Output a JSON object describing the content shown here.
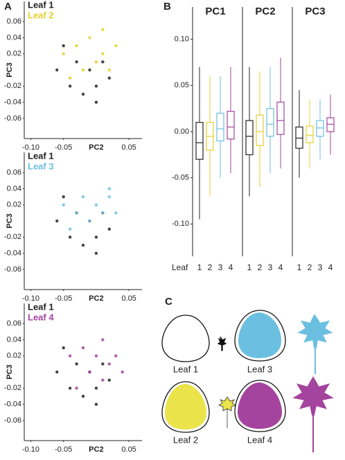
{
  "panel_labels": [
    "A",
    "B",
    "C"
  ],
  "box_axis_label": "Leaf",
  "leaf_diagram": {
    "labels": [
      "Leaf 1",
      "Leaf 3",
      "Leaf 2",
      "Leaf 4"
    ]
  },
  "chart_data": [
    {
      "type": "scatter",
      "xlabel": "PC2",
      "ylabel": "PC3",
      "xlim": [
        -0.11,
        0.07
      ],
      "ylim": [
        -0.085,
        0.085
      ],
      "xticks": [
        {
          "value": -0.1,
          "label": "-0.10"
        },
        -0.05,
        0.05
      ],
      "yticks": [
        0.06,
        0.04,
        0.02,
        -0.02,
        -0.04,
        -0.06
      ],
      "series": [
        {
          "name": "Leaf 1",
          "color": "#222222",
          "x": [
            -0.06,
            -0.04,
            -0.03,
            -0.02,
            -0.01,
            0.0,
            0.01,
            0.02,
            -0.05,
            0.0
          ],
          "values": [
            0.0,
            -0.02,
            0.01,
            -0.03,
            0.0,
            -0.02,
            0.01,
            -0.01,
            0.03,
            -0.04
          ]
        },
        {
          "name": "Leaf 2",
          "color": "#e6cf2e",
          "x": [
            -0.05,
            -0.03,
            -0.02,
            -0.01,
            0.0,
            0.01,
            0.02,
            0.03,
            -0.04,
            0.01
          ],
          "values": [
            0.02,
            0.03,
            0.0,
            0.04,
            0.01,
            0.02,
            0.0,
            0.03,
            -0.01,
            0.05
          ]
        }
      ]
    },
    {
      "type": "scatter",
      "xlabel": "PC2",
      "ylabel": "PC3",
      "xlim": [
        -0.11,
        0.07
      ],
      "ylim": [
        -0.085,
        0.085
      ],
      "xticks": [
        {
          "value": -0.1,
          "label": "-0.10"
        },
        -0.05,
        0.05
      ],
      "yticks": [
        0.06,
        0.04,
        0.02,
        -0.02,
        -0.04,
        -0.06
      ],
      "series": [
        {
          "name": "Leaf 1",
          "color": "#222222",
          "x": [
            -0.06,
            -0.04,
            -0.03,
            -0.02,
            -0.01,
            0.0,
            0.01,
            0.02,
            -0.05,
            0.0
          ],
          "values": [
            0.0,
            -0.02,
            0.01,
            -0.03,
            0.0,
            -0.02,
            0.01,
            -0.01,
            0.03,
            -0.04
          ]
        },
        {
          "name": "Leaf 3",
          "color": "#6bbfe0",
          "x": [
            -0.05,
            -0.03,
            -0.02,
            -0.01,
            0.0,
            0.01,
            0.02,
            0.03,
            -0.04,
            0.02
          ],
          "values": [
            0.02,
            0.01,
            0.03,
            0.0,
            0.02,
            0.01,
            0.03,
            0.01,
            -0.01,
            0.04
          ]
        }
      ]
    },
    {
      "type": "scatter",
      "xlabel": "PC2",
      "ylabel": "PC3",
      "xlim": [
        -0.11,
        0.07
      ],
      "ylim": [
        -0.085,
        0.085
      ],
      "xticks": [
        {
          "value": -0.1,
          "label": "-0.10"
        },
        -0.05,
        0.05
      ],
      "yticks": [
        0.06,
        0.04,
        0.02,
        -0.02,
        -0.04,
        -0.06
      ],
      "series": [
        {
          "name": "Leaf 1",
          "color": "#222222",
          "x": [
            -0.06,
            -0.04,
            -0.03,
            -0.02,
            -0.01,
            0.0,
            0.01,
            0.02,
            -0.05,
            0.0
          ],
          "values": [
            0.0,
            -0.02,
            0.01,
            -0.03,
            0.0,
            -0.02,
            0.01,
            -0.01,
            0.03,
            -0.04
          ]
        },
        {
          "name": "Leaf 4",
          "color": "#a4449e",
          "x": [
            -0.04,
            -0.02,
            -0.01,
            0.0,
            0.01,
            0.02,
            0.03,
            0.04,
            -0.03,
            0.01
          ],
          "values": [
            0.02,
            0.03,
            0.0,
            0.02,
            0.04,
            0.01,
            0.02,
            0.0,
            -0.02,
            -0.01
          ]
        }
      ]
    },
    {
      "type": "box",
      "title": "PC1",
      "categories": [
        "1",
        "2",
        "3",
        "4"
      ],
      "colors": [
        "#222222",
        "#e6cf2e",
        "#6bbfe0",
        "#a4449e"
      ],
      "ylim": [
        -0.135,
        0.135
      ],
      "yticks": [
        {
          "value": 0.1,
          "label": "0.10"
        },
        0.05,
        {
          "value": 0,
          "label": "0.00"
        },
        -0.05,
        {
          "value": -0.1,
          "label": "-0.10"
        }
      ],
      "boxes": [
        {
          "whislo": -0.095,
          "q1": -0.03,
          "med": -0.012,
          "q3": 0.01,
          "whishi": 0.07
        },
        {
          "whislo": -0.07,
          "q1": -0.02,
          "med": -0.005,
          "q3": 0.01,
          "whishi": 0.06
        },
        {
          "whislo": -0.05,
          "q1": -0.01,
          "med": 0.003,
          "q3": 0.02,
          "whishi": 0.06
        },
        {
          "whislo": -0.045,
          "q1": -0.008,
          "med": 0.005,
          "q3": 0.022,
          "whishi": 0.07
        }
      ]
    },
    {
      "type": "box",
      "title": "PC2",
      "categories": [
        "1",
        "2",
        "3",
        "4"
      ],
      "colors": [
        "#222222",
        "#e6cf2e",
        "#6bbfe0",
        "#a4449e"
      ],
      "ylim": [
        -0.135,
        0.135
      ],
      "boxes": [
        {
          "whislo": -0.07,
          "q1": -0.025,
          "med": -0.005,
          "q3": 0.012,
          "whishi": 0.07
        },
        {
          "whislo": -0.06,
          "q1": -0.015,
          "med": 0.0,
          "q3": 0.018,
          "whishi": 0.065
        },
        {
          "whislo": -0.045,
          "q1": -0.005,
          "med": 0.008,
          "q3": 0.025,
          "whishi": 0.07
        },
        {
          "whislo": -0.04,
          "q1": -0.003,
          "med": 0.012,
          "q3": 0.032,
          "whishi": 0.08
        }
      ]
    },
    {
      "type": "box",
      "title": "PC3",
      "categories": [
        "1",
        "2",
        "3",
        "4"
      ],
      "colors": [
        "#222222",
        "#e6cf2e",
        "#6bbfe0",
        "#a4449e"
      ],
      "ylim": [
        -0.135,
        0.135
      ],
      "boxes": [
        {
          "whislo": -0.05,
          "q1": -0.018,
          "med": -0.007,
          "q3": 0.005,
          "whishi": 0.045
        },
        {
          "whislo": -0.04,
          "q1": -0.012,
          "med": -0.004,
          "q3": 0.006,
          "whishi": 0.035
        },
        {
          "whislo": -0.03,
          "q1": -0.005,
          "med": 0.004,
          "q3": 0.012,
          "whishi": 0.035
        },
        {
          "whislo": -0.025,
          "q1": 0.0,
          "med": 0.008,
          "q3": 0.015,
          "whishi": 0.04
        }
      ]
    }
  ]
}
